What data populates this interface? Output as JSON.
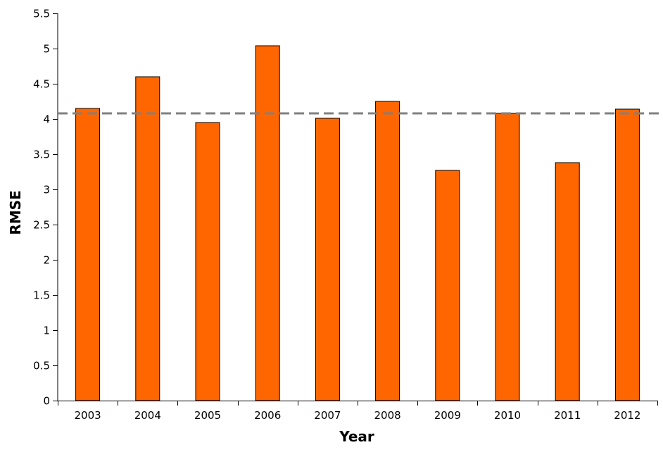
{
  "chart_data": {
    "type": "bar",
    "title": "",
    "xlabel": "Year",
    "ylabel": "RMSE",
    "categories": [
      "2003",
      "2004",
      "2005",
      "2006",
      "2007",
      "2008",
      "2009",
      "2010",
      "2011",
      "2012"
    ],
    "values": [
      4.15,
      4.6,
      3.95,
      5.04,
      4.01,
      4.25,
      3.27,
      4.08,
      3.38,
      4.14
    ],
    "ylim": [
      0,
      5.5
    ],
    "yticks": [
      "0",
      "0.5",
      "1",
      "1.5",
      "2",
      "2.5",
      "3",
      "3.5",
      "4",
      "4.5",
      "5",
      "5.5"
    ],
    "reference_line": {
      "value": 4.08,
      "style": "dashed",
      "color": "#808080"
    },
    "bar_color": "#ff6600",
    "bar_edge_color": "#000000",
    "grid": false,
    "legend": "none"
  }
}
